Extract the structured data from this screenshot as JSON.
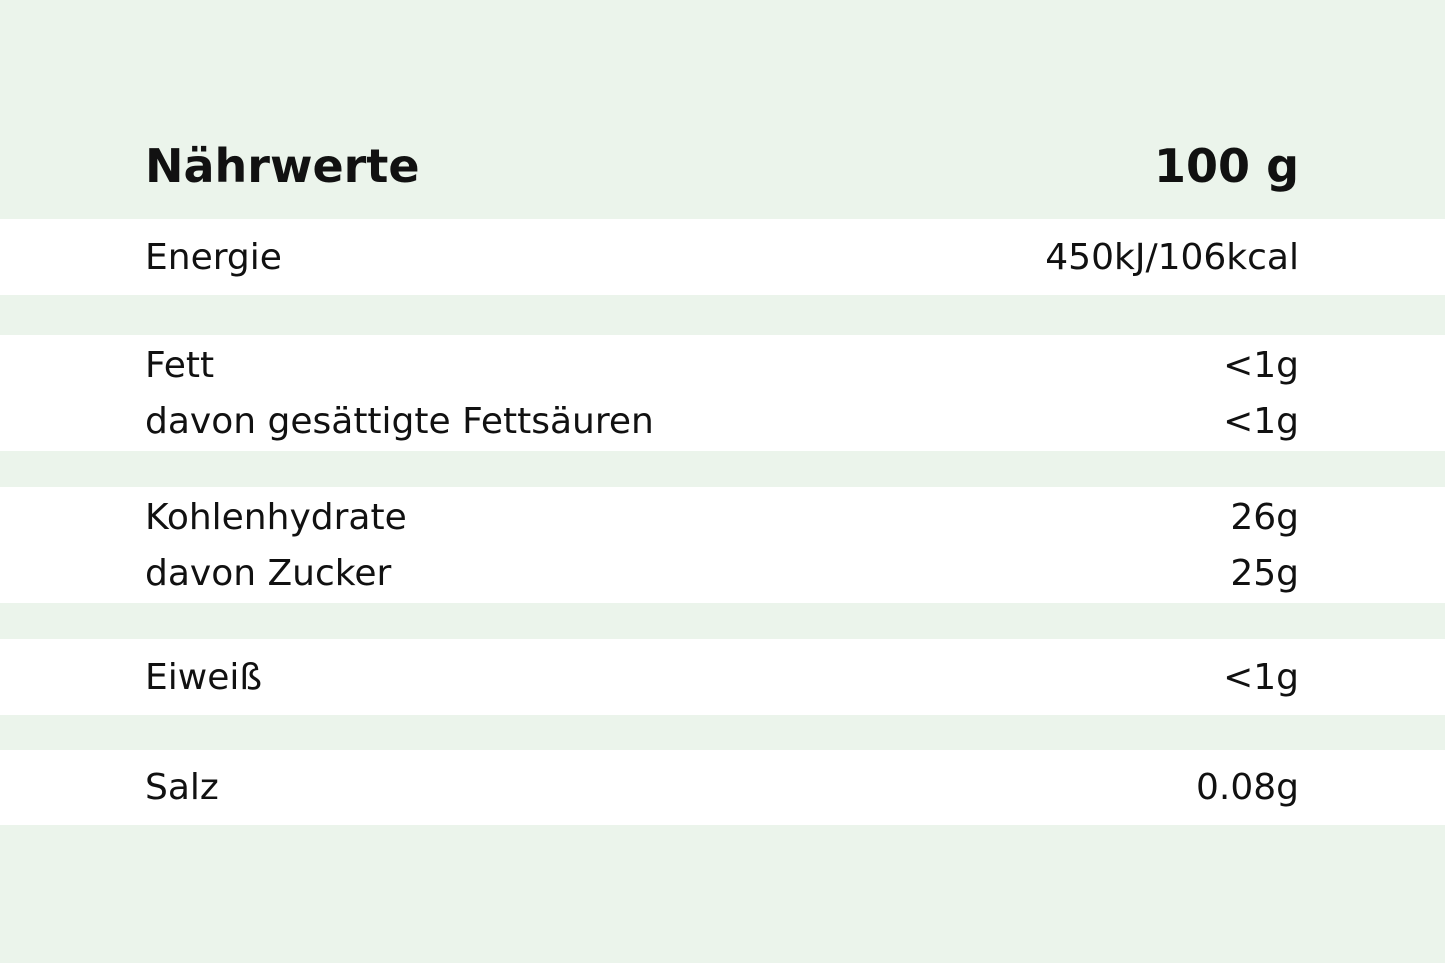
{
  "header": {
    "title": "Nährwerte",
    "amount": "100 g"
  },
  "groups": [
    {
      "rows": [
        {
          "label": "Energie",
          "value": "450kJ/106kcal"
        }
      ]
    },
    {
      "rows": [
        {
          "label": "Fett",
          "value": "<1g"
        },
        {
          "label": "davon gesättigte Fettsäuren",
          "value": "<1g"
        }
      ]
    },
    {
      "rows": [
        {
          "label": "Kohlenhydrate",
          "value": "26g"
        },
        {
          "label": "davon Zucker",
          "value": "25g"
        }
      ]
    },
    {
      "rows": [
        {
          "label": "Eiweiß",
          "value": "<1g"
        }
      ]
    },
    {
      "rows": [
        {
          "label": "Salz",
          "value": "0.08g"
        }
      ]
    }
  ],
  "colors": {
    "background": "#ebf4eb",
    "row_background": "#ffffff",
    "text": "#111111"
  }
}
